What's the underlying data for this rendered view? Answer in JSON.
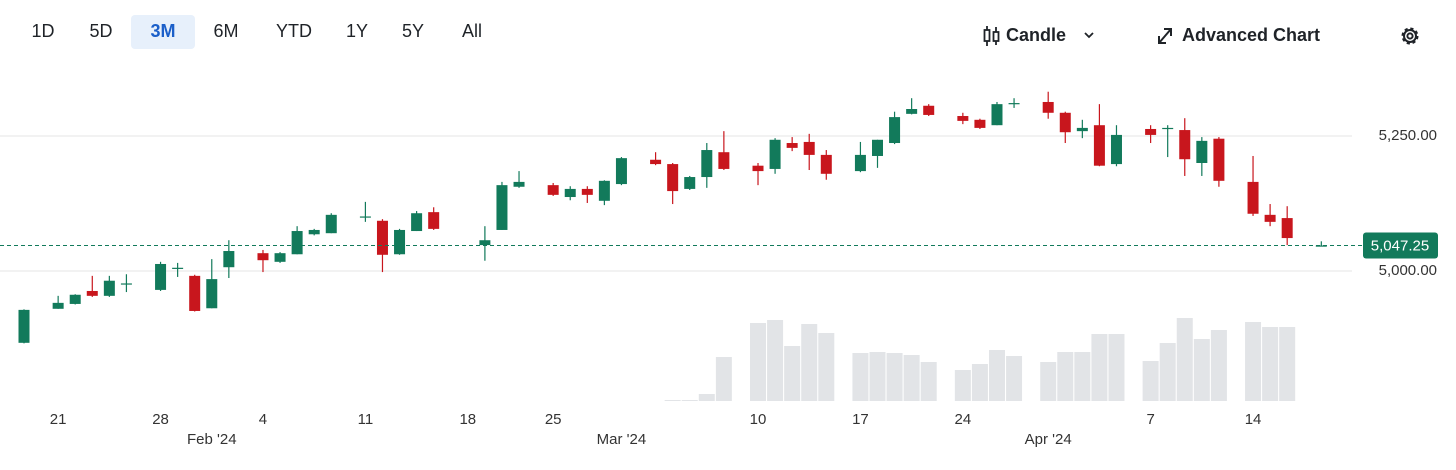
{
  "toolbar": {
    "ranges": [
      "1D",
      "5D",
      "3M",
      "6M",
      "YTD",
      "1Y",
      "5Y",
      "All"
    ],
    "selected": 2,
    "chart_type": "Candle",
    "advanced": "Advanced Chart"
  },
  "chart_data": {
    "type": "candlestick",
    "categories": [
      null,
      null,
      "21",
      null,
      null,
      null,
      null,
      null,
      "28",
      null,
      null,
      "Feb '24",
      null,
      null,
      "4",
      null,
      null,
      null,
      null,
      null,
      "11",
      null,
      null,
      null,
      null,
      null,
      "18",
      null,
      null,
      null,
      null,
      "25",
      null,
      null,
      null,
      "Mar '24",
      null,
      null,
      null,
      null,
      null,
      null,
      null,
      "10",
      null,
      null,
      null,
      null,
      null,
      "17",
      null,
      null,
      null,
      null,
      null,
      "24",
      null,
      null,
      null,
      null,
      "Apr '24",
      null,
      null,
      null,
      null,
      null,
      "7",
      null,
      null,
      null,
      null,
      null,
      "14",
      null,
      null,
      null,
      null
    ],
    "open": [
      4867,
      null,
      4930,
      4939,
      4963,
      4954,
      4976,
      null,
      4965,
      5005,
      4991,
      4931,
      5007,
      null,
      5033,
      5017,
      5031,
      5068,
      5070,
      null,
      5100,
      5093,
      5031,
      5074,
      5109,
      null,
      null,
      5048,
      5076,
      5156,
      null,
      5159,
      5137,
      5152,
      5130,
      5161,
      null,
      5206,
      5198,
      5152,
      5174,
      5220,
      null,
      5195,
      5189,
      5237,
      5239,
      5215,
      null,
      5185,
      5213,
      5237,
      5291,
      5306,
      null,
      5287,
      5280,
      5270,
      5310,
      null,
      5313,
      5293,
      5259,
      5270,
      5198,
      null,
      5263,
      5264,
      5261,
      5200,
      5245,
      null,
      5165,
      5104,
      5098,
      null,
      5047
    ],
    "high": [
      4929,
      null,
      4954,
      4957,
      4991,
      4991,
      4994,
      null,
      5017,
      5015,
      4993,
      5022,
      5057,
      null,
      5039,
      5035,
      5083,
      5078,
      5107,
      null,
      5128,
      5096,
      5078,
      5111,
      5118,
      null,
      null,
      5083,
      5165,
      5185,
      null,
      5163,
      5157,
      5157,
      5168,
      5211,
      null,
      5220,
      5200,
      5176,
      5237,
      5259,
      null,
      5200,
      5246,
      5248,
      5254,
      5224,
      null,
      5239,
      5243,
      5295,
      5320,
      5309,
      null,
      5293,
      5282,
      5313,
      5320,
      null,
      5332,
      5295,
      5280,
      5309,
      5270,
      null,
      5270,
      5270,
      5283,
      5248,
      5248,
      null,
      5213,
      5124,
      5120,
      null,
      5055
    ],
    "low": [
      4866,
      null,
      4930,
      4938,
      4952,
      4952,
      4961,
      null,
      4963,
      4989,
      4925,
      4931,
      4987,
      null,
      4998,
      5015,
      5031,
      5066,
      5070,
      null,
      5091,
      4998,
      5030,
      5074,
      5076,
      null,
      null,
      5019,
      5076,
      5154,
      null,
      5139,
      5131,
      5126,
      5122,
      5159,
      null,
      5196,
      5124,
      5150,
      5154,
      5187,
      null,
      5159,
      5180,
      5222,
      5187,
      5169,
      null,
      5183,
      5191,
      5235,
      5290,
      5287,
      null,
      5272,
      5263,
      5270,
      5302,
      null,
      5282,
      5237,
      5246,
      5194,
      5194,
      null,
      5237,
      5211,
      5176,
      5176,
      5156,
      null,
      5102,
      5083,
      5048,
      null,
      5046
    ],
    "close": [
      4928,
      null,
      4941,
      4956,
      4954,
      4982,
      4977,
      null,
      5013,
      5006,
      4926,
      4985,
      5037,
      null,
      5020,
      5033,
      5074,
      5076,
      5104,
      null,
      5101,
      5030,
      5076,
      5107,
      5078,
      null,
      null,
      5057,
      5159,
      5165,
      null,
      5141,
      5152,
      5141,
      5167,
      5209,
      null,
      5198,
      5148,
      5174,
      5224,
      5189,
      null,
      5185,
      5243,
      5228,
      5215,
      5180,
      null,
      5215,
      5243,
      5285,
      5300,
      5289,
      null,
      5278,
      5265,
      5309,
      5311,
      null,
      5293,
      5257,
      5265,
      5195,
      5252,
      null,
      5252,
      5265,
      5207,
      5241,
      5167,
      null,
      5106,
      5091,
      5061,
      null,
      5047.25
    ],
    "volume": [
      null,
      null,
      null,
      null,
      null,
      null,
      null,
      null,
      null,
      null,
      null,
      null,
      null,
      null,
      null,
      null,
      null,
      null,
      null,
      null,
      null,
      null,
      null,
      null,
      null,
      null,
      null,
      null,
      null,
      null,
      null,
      null,
      null,
      null,
      null,
      null,
      null,
      null,
      1,
      1,
      7,
      44,
      null,
      78,
      81,
      55,
      77,
      68,
      null,
      48,
      49,
      48,
      46,
      39,
      null,
      31,
      37,
      51,
      45,
      null,
      39,
      49,
      49,
      67,
      67,
      null,
      40,
      58,
      83,
      62,
      71,
      null,
      79,
      74,
      74,
      null,
      null
    ],
    "volume_ylim": [
      0,
      100
    ],
    "ylim": [
      4850,
      5350
    ],
    "yticks": [
      {
        "value": 5000,
        "label": "5,000.00"
      },
      {
        "value": 5250,
        "label": "5,250.00"
      }
    ],
    "last_price": {
      "value": 5047.25,
      "label": "5,047.25"
    },
    "up_color": "#127a5b",
    "down_color": "#c8161d",
    "volume_color": "#e2e4e7",
    "grid": true
  }
}
